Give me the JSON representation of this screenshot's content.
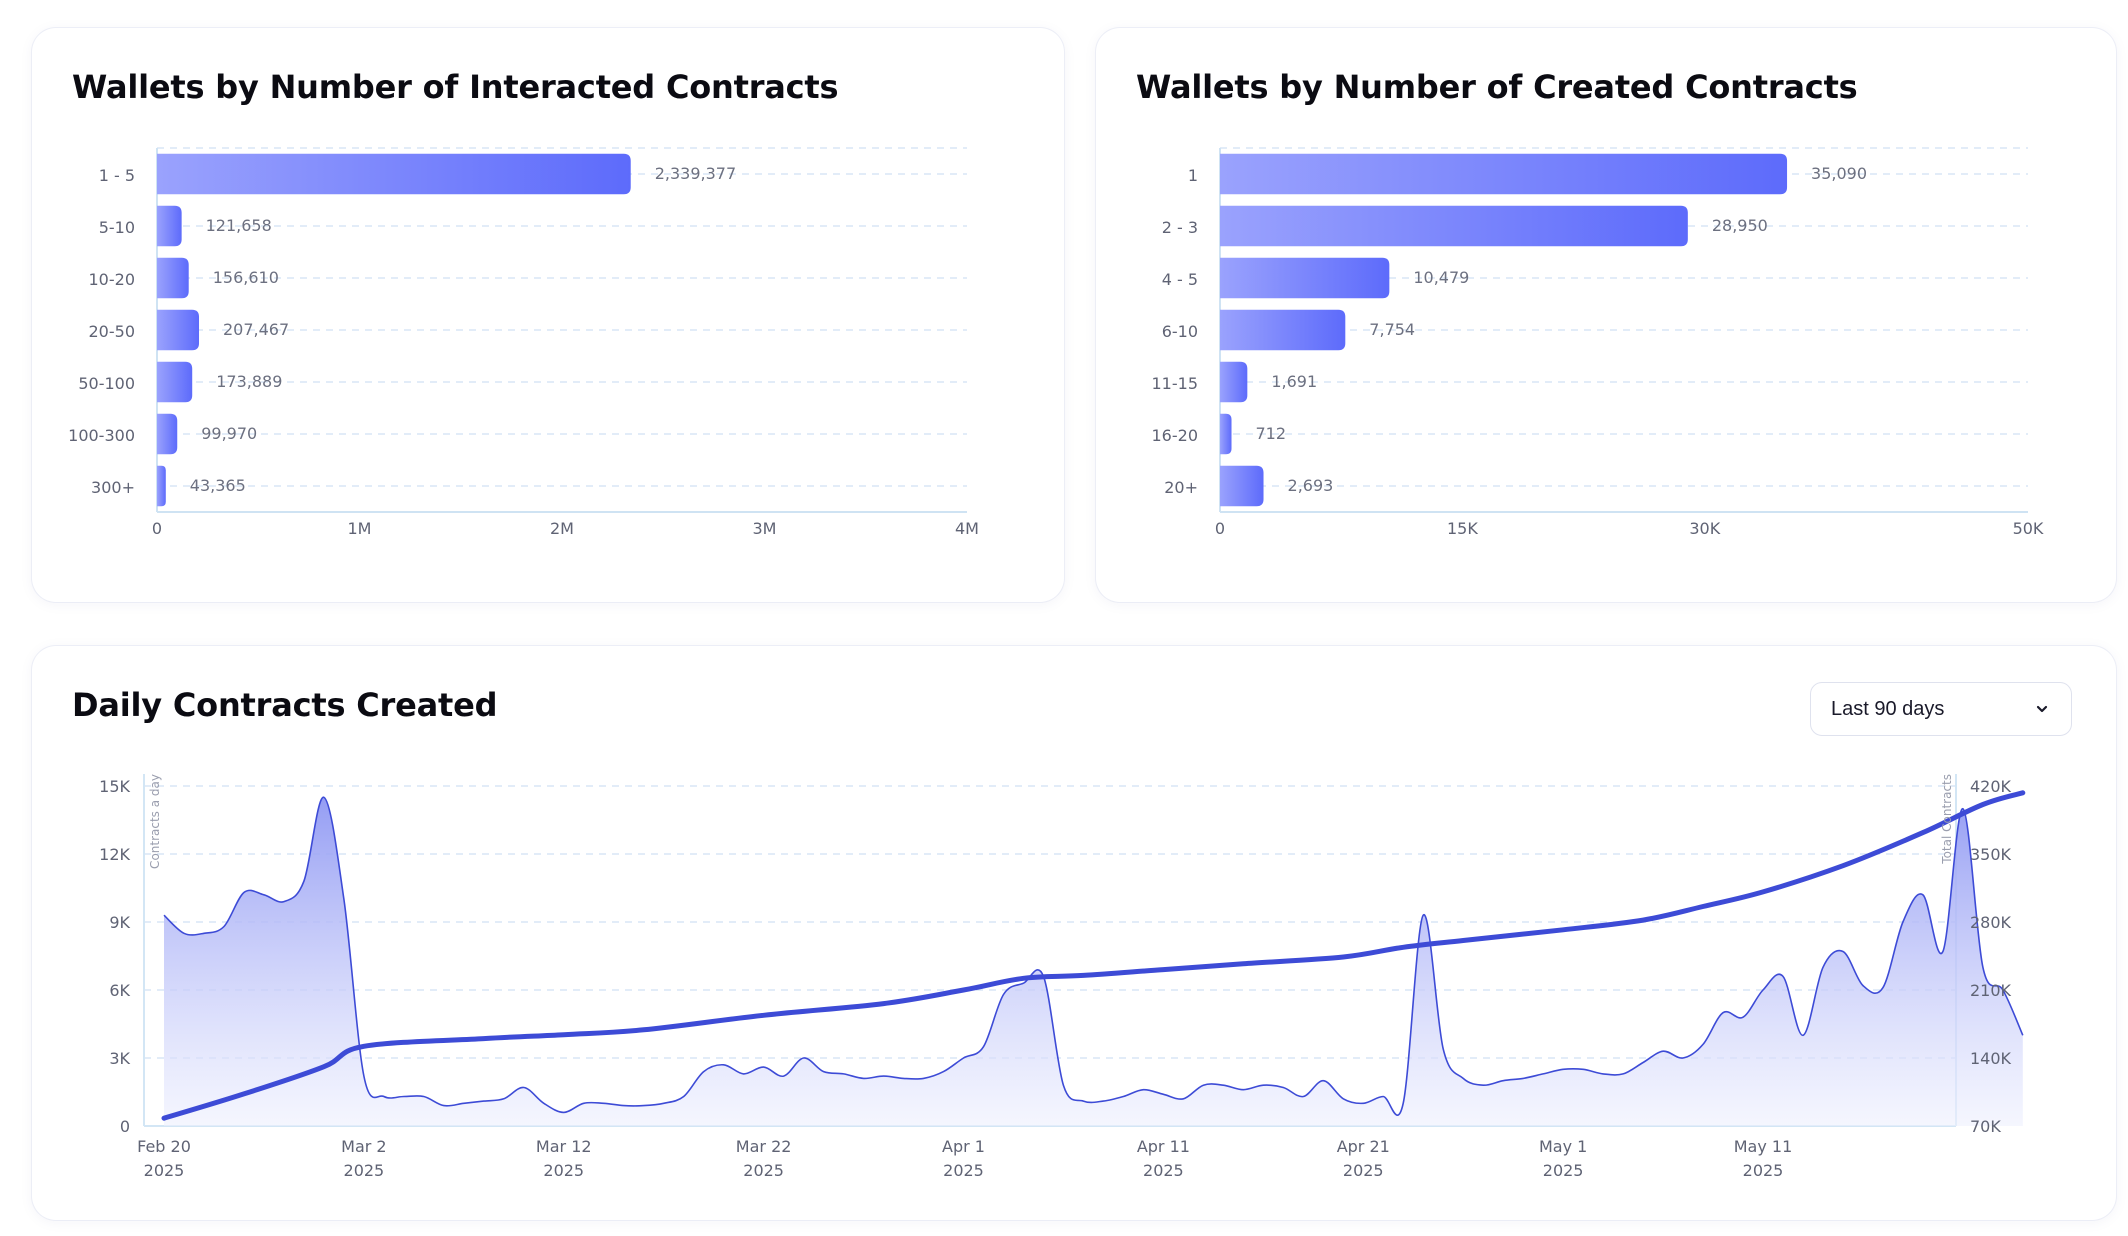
{
  "charts": {
    "interacted": {
      "title": "Wallets by Number of Interacted Contracts"
    },
    "created": {
      "title": "Wallets by Number of Created Contracts"
    },
    "daily": {
      "title": "Daily Contracts Created",
      "range_select": {
        "value": "Last 90 days",
        "icon": "chevron-down-icon"
      }
    }
  },
  "colors": {
    "bar_gradient_start": "#9aa2fd",
    "bar_gradient_end": "#5d6bfb",
    "line": "#3d4bd6",
    "area_top": "#8f98f3",
    "grid": "#d8e6f6"
  },
  "chart_data": [
    {
      "type": "bar",
      "orientation": "horizontal",
      "title": "Wallets by Number of Interacted Contracts",
      "categories": [
        "1 - 5",
        "5-10",
        "10-20",
        "20-50",
        "50-100",
        "100-300",
        "300+"
      ],
      "values": [
        2339377,
        121658,
        156610,
        207467,
        173889,
        99970,
        43365
      ],
      "value_labels": [
        "2,339,377",
        "121,658",
        "156,610",
        "207,467",
        "173,889",
        "99,970",
        "43,365"
      ],
      "xlim": [
        0,
        4000000
      ],
      "xticks": [
        0,
        1000000,
        2000000,
        3000000,
        4000000
      ],
      "xtick_labels": [
        "0",
        "1M",
        "2M",
        "3M",
        "4M"
      ],
      "grid": true
    },
    {
      "type": "bar",
      "orientation": "horizontal",
      "title": "Wallets by Number of Created Contracts",
      "categories": [
        "1",
        "2 - 3",
        "4 - 5",
        "6-10",
        "11-15",
        "16-20",
        "20+"
      ],
      "values": [
        35090,
        28950,
        10479,
        7754,
        1691,
        712,
        2693
      ],
      "value_labels": [
        "35,090",
        "28,950",
        "10,479",
        "7,754",
        "1,691",
        "712",
        "2,693"
      ],
      "xlim": [
        0,
        50000
      ],
      "xticks": [
        0,
        15000,
        30000,
        50000
      ],
      "xtick_labels": [
        "0",
        "15K",
        "30K",
        "50K"
      ],
      "grid": true
    },
    {
      "type": "area",
      "title": "Daily Contracts Created",
      "x_type": "date",
      "xlim": [
        "2025-02-20",
        "2025-05-20"
      ],
      "xticks": [
        "2025-02-20",
        "2025-03-02",
        "2025-03-12",
        "2025-03-22",
        "2025-04-01",
        "2025-04-11",
        "2025-04-21",
        "2025-05-01",
        "2025-05-11"
      ],
      "xtick_labels": [
        [
          "Feb 20",
          "2025"
        ],
        [
          "Mar 2",
          "2025"
        ],
        [
          "Mar 12",
          "2025"
        ],
        [
          "Mar 22",
          "2025"
        ],
        [
          "Apr 1",
          "2025"
        ],
        [
          "Apr 11",
          "2025"
        ],
        [
          "Apr 21",
          "2025"
        ],
        [
          "May 1",
          "2025"
        ],
        [
          "May 11",
          "2025"
        ]
      ],
      "ylabel_left": "Contracts a day",
      "ylim_left": [
        0,
        15000
      ],
      "yticks_left": [
        0,
        3000,
        6000,
        9000,
        12000,
        15000
      ],
      "ytick_labels_left": [
        "0",
        "3K",
        "6K",
        "9K",
        "12K",
        "15K"
      ],
      "ylabel_right": "Total Contracts",
      "ylim_right": [
        70000,
        420000
      ],
      "yticks_right": [
        70000,
        140000,
        210000,
        280000,
        350000,
        420000
      ],
      "ytick_labels_right": [
        "70K",
        "140K",
        "210K",
        "280K",
        "350K",
        "420K"
      ],
      "grid": true,
      "series": [
        {
          "axis": "left",
          "style": "area",
          "points": [
            [
              "2025-02-20",
              9300
            ],
            [
              "2025-02-21",
              8500
            ],
            [
              "2025-02-22",
              8500
            ],
            [
              "2025-02-23",
              8800
            ],
            [
              "2025-02-24",
              10300
            ],
            [
              "2025-02-25",
              10200
            ],
            [
              "2025-02-26",
              9900
            ],
            [
              "2025-02-27",
              10800
            ],
            [
              "2025-02-28",
              14500
            ],
            [
              "2025-03-01",
              10000
            ],
            [
              "2025-03-02",
              2200
            ],
            [
              "2025-03-03",
              1300
            ],
            [
              "2025-03-04",
              1300
            ],
            [
              "2025-03-05",
              1300
            ],
            [
              "2025-03-06",
              900
            ],
            [
              "2025-03-07",
              1000
            ],
            [
              "2025-03-08",
              1100
            ],
            [
              "2025-03-09",
              1200
            ],
            [
              "2025-03-10",
              1700
            ],
            [
              "2025-03-11",
              1000
            ],
            [
              "2025-03-12",
              600
            ],
            [
              "2025-03-13",
              1000
            ],
            [
              "2025-03-14",
              1000
            ],
            [
              "2025-03-15",
              900
            ],
            [
              "2025-03-16",
              900
            ],
            [
              "2025-03-17",
              1000
            ],
            [
              "2025-03-18",
              1300
            ],
            [
              "2025-03-19",
              2400
            ],
            [
              "2025-03-20",
              2700
            ],
            [
              "2025-03-21",
              2300
            ],
            [
              "2025-03-22",
              2600
            ],
            [
              "2025-03-23",
              2200
            ],
            [
              "2025-03-24",
              3000
            ],
            [
              "2025-03-25",
              2400
            ],
            [
              "2025-03-26",
              2300
            ],
            [
              "2025-03-27",
              2100
            ],
            [
              "2025-03-28",
              2200
            ],
            [
              "2025-03-29",
              2100
            ],
            [
              "2025-03-30",
              2100
            ],
            [
              "2025-03-31",
              2400
            ],
            [
              "2025-04-01",
              3000
            ],
            [
              "2025-04-02",
              3500
            ],
            [
              "2025-04-03",
              5800
            ],
            [
              "2025-04-04",
              6300
            ],
            [
              "2025-04-05",
              6600
            ],
            [
              "2025-04-06",
              1800
            ],
            [
              "2025-04-07",
              1100
            ],
            [
              "2025-04-08",
              1100
            ],
            [
              "2025-04-09",
              1300
            ],
            [
              "2025-04-10",
              1600
            ],
            [
              "2025-04-11",
              1400
            ],
            [
              "2025-04-12",
              1200
            ],
            [
              "2025-04-13",
              1800
            ],
            [
              "2025-04-14",
              1800
            ],
            [
              "2025-04-15",
              1600
            ],
            [
              "2025-04-16",
              1800
            ],
            [
              "2025-04-17",
              1700
            ],
            [
              "2025-04-18",
              1300
            ],
            [
              "2025-04-19",
              2000
            ],
            [
              "2025-04-20",
              1200
            ],
            [
              "2025-04-21",
              1000
            ],
            [
              "2025-04-22",
              1300
            ],
            [
              "2025-04-23",
              1000
            ],
            [
              "2025-04-24",
              9300
            ],
            [
              "2025-04-25",
              3400
            ],
            [
              "2025-04-26",
              2100
            ],
            [
              "2025-04-27",
              1800
            ],
            [
              "2025-04-28",
              2000
            ],
            [
              "2025-04-29",
              2100
            ],
            [
              "2025-04-30",
              2300
            ],
            [
              "2025-05-01",
              2500
            ],
            [
              "2025-05-02",
              2500
            ],
            [
              "2025-05-03",
              2300
            ],
            [
              "2025-05-04",
              2300
            ],
            [
              "2025-05-05",
              2800
            ],
            [
              "2025-05-06",
              3300
            ],
            [
              "2025-05-07",
              3000
            ],
            [
              "2025-05-08",
              3600
            ],
            [
              "2025-05-09",
              5000
            ],
            [
              "2025-05-10",
              4800
            ],
            [
              "2025-05-11",
              6000
            ],
            [
              "2025-05-12",
              6600
            ],
            [
              "2025-05-13",
              4000
            ],
            [
              "2025-05-14",
              7000
            ],
            [
              "2025-05-15",
              7700
            ],
            [
              "2025-05-16",
              6200
            ],
            [
              "2025-05-17",
              6100
            ],
            [
              "2025-05-18",
              9000
            ],
            [
              "2025-05-19",
              10200
            ],
            [
              "2025-05-20",
              7700
            ],
            [
              "2025-05-21",
              14000
            ],
            [
              "2025-05-22",
              7000
            ],
            [
              "2025-05-23",
              6000
            ],
            [
              "2025-05-24",
              4000
            ]
          ]
        },
        {
          "axis": "right",
          "style": "line",
          "points": [
            [
              "2025-02-20",
              78000
            ],
            [
              "2025-02-24",
              103000
            ],
            [
              "2025-02-28",
              131000
            ],
            [
              "2025-03-02",
              152000
            ],
            [
              "2025-03-08",
              160000
            ],
            [
              "2025-03-12",
              164000
            ],
            [
              "2025-03-16",
              169000
            ],
            [
              "2025-03-22",
              184000
            ],
            [
              "2025-03-28",
              196000
            ],
            [
              "2025-04-01",
              210000
            ],
            [
              "2025-04-04",
              222000
            ],
            [
              "2025-04-07",
              225000
            ],
            [
              "2025-04-11",
              231000
            ],
            [
              "2025-04-15",
              237000
            ],
            [
              "2025-04-20",
              244000
            ],
            [
              "2025-04-23",
              254000
            ],
            [
              "2025-04-26",
              261000
            ],
            [
              "2025-05-01",
              272000
            ],
            [
              "2025-05-05",
              282000
            ],
            [
              "2025-05-08",
              296000
            ],
            [
              "2025-05-11",
              311000
            ],
            [
              "2025-05-15",
              338000
            ],
            [
              "2025-05-19",
              372000
            ],
            [
              "2025-05-22",
              401000
            ],
            [
              "2025-05-24",
              413000
            ]
          ]
        }
      ]
    }
  ]
}
